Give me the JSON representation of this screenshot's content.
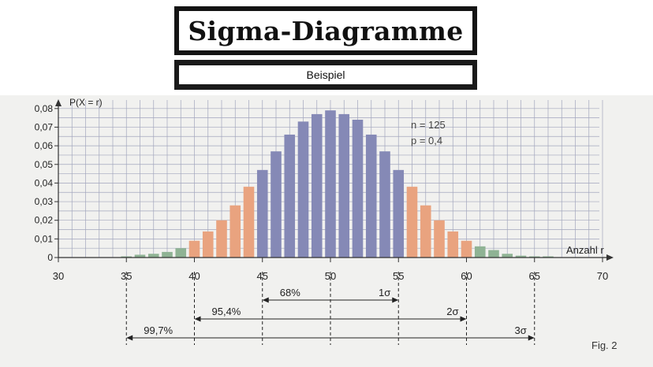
{
  "header": {
    "title": "Sigma-Diagramme",
    "subtitle": "Beispiel"
  },
  "chart_data": {
    "type": "bar",
    "ylabel": "P(X = r)",
    "xlabel": "Anzahl r",
    "xlim": [
      30,
      70
    ],
    "ylim": [
      0,
      0.08
    ],
    "x_ticks": [
      "30",
      "35",
      "40",
      "45",
      "50",
      "55",
      "60",
      "65",
      "70"
    ],
    "y_ticks": [
      "0",
      "0,01",
      "0,02",
      "0,03",
      "0,04",
      "0,05",
      "0,06",
      "0,07",
      "0,08"
    ],
    "params": [
      "n = 125",
      "p = 0,4"
    ],
    "x": [
      35,
      36,
      37,
      38,
      39,
      40,
      41,
      42,
      43,
      44,
      45,
      46,
      47,
      48,
      49,
      50,
      51,
      52,
      53,
      54,
      55,
      56,
      57,
      58,
      59,
      60,
      61,
      62,
      63,
      64,
      65,
      66
    ],
    "values": [
      0.0003,
      0.0015,
      0.002,
      0.003,
      0.005,
      0.009,
      0.014,
      0.02,
      0.028,
      0.038,
      0.047,
      0.057,
      0.066,
      0.073,
      0.077,
      0.079,
      0.077,
      0.074,
      0.066,
      0.057,
      0.047,
      0.038,
      0.028,
      0.02,
      0.014,
      0.009,
      0.006,
      0.004,
      0.002,
      0.001,
      0.0005,
      0.0003
    ],
    "colors": {
      "blue": "#8589b6",
      "orange": "#e9a37f",
      "green": "#8fb394"
    },
    "ranges": [
      {
        "label": "68%",
        "sigma_label": "1σ",
        "from": 45,
        "to": 55
      },
      {
        "label": "95,4%",
        "sigma_label": "2σ",
        "from": 40,
        "to": 60
      },
      {
        "label": "99,7%",
        "sigma_label": "3σ",
        "from": 35,
        "to": 65
      }
    ],
    "figure_label": "Fig. 2"
  }
}
